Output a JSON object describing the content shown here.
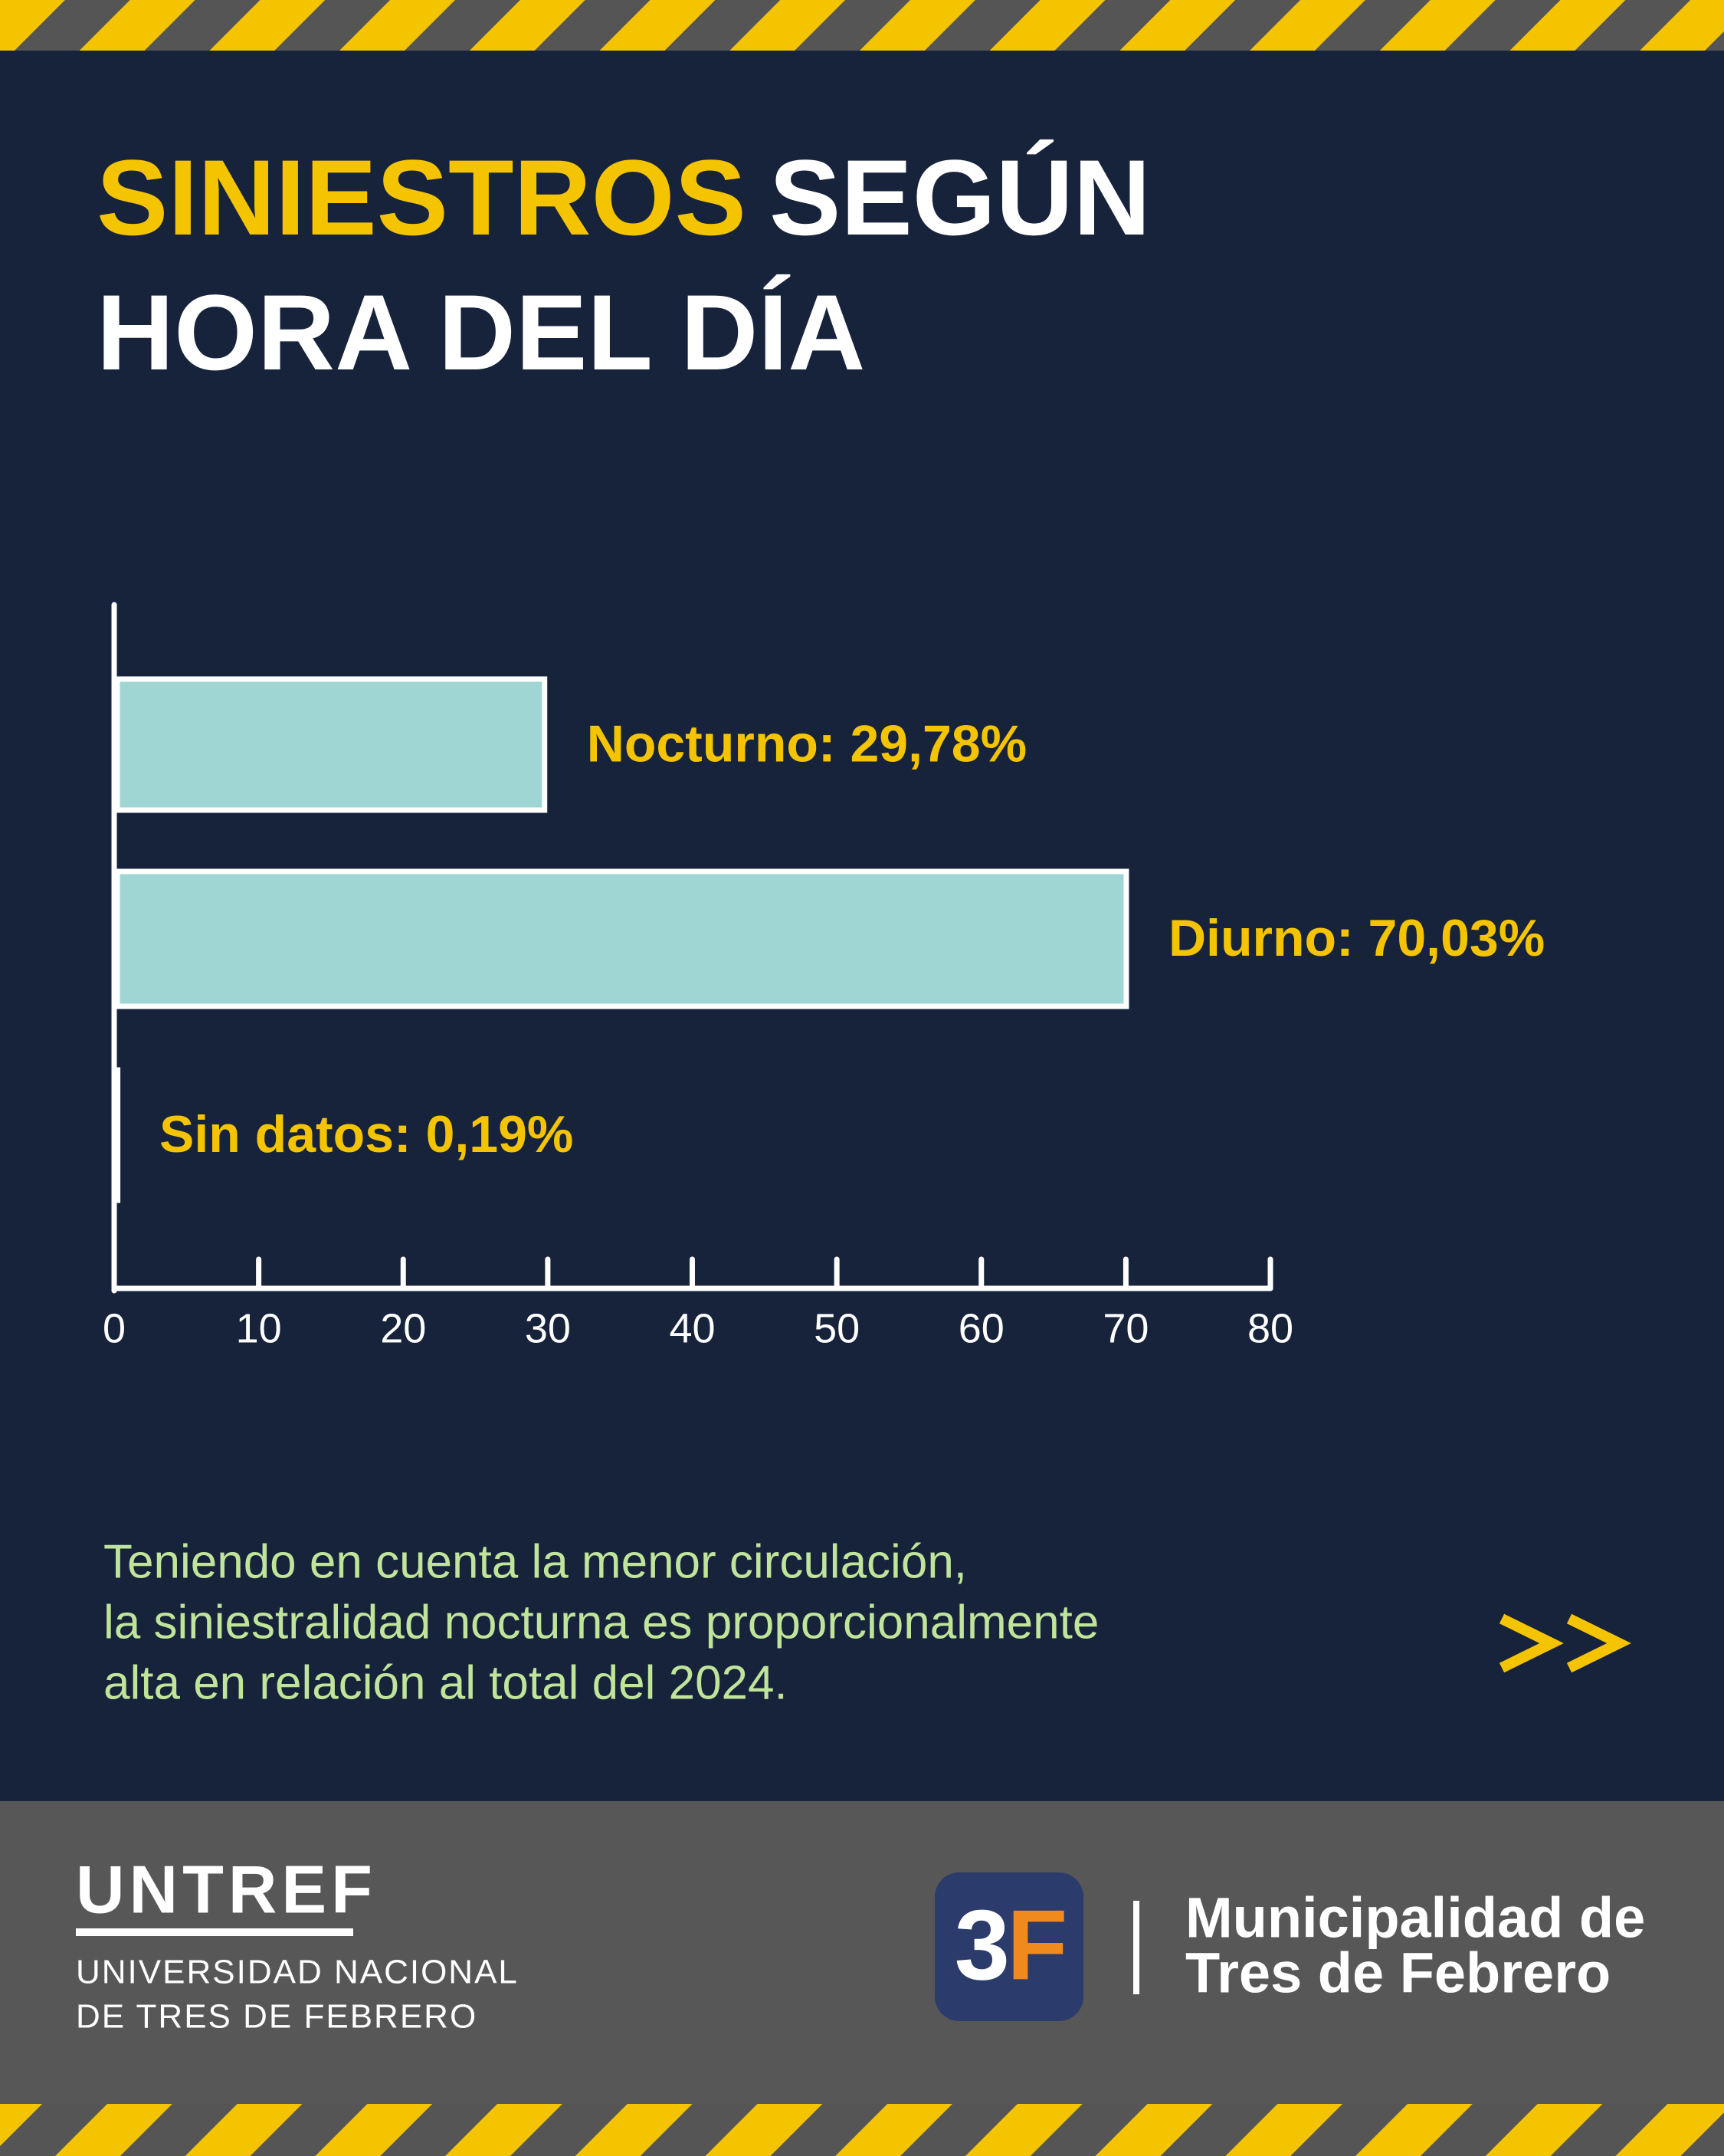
{
  "chart_data": {
    "type": "hbar",
    "title_parts": [
      "SINIESTROS",
      "SEGÚN",
      "HORA DEL DÍA"
    ],
    "values": [
      29.78,
      70.03,
      0.19
    ],
    "value_labels": [
      "Nocturno: 29,78%",
      "Diurno: 70,03%",
      "Sin datos: 0,19%"
    ],
    "colors": [
      "#9fd6d4",
      "#9fd6d4",
      "#c8ea9c"
    ],
    "xlim": [
      0,
      80
    ],
    "xticks": [
      0,
      10,
      20,
      30,
      40,
      50,
      60,
      70,
      80
    ],
    "note": [
      "Teniendo en cuenta la menor circulación,",
      "la siniestralidad nocturna es proporcionalmente",
      "alta en relación al total del 2024."
    ]
  },
  "footer": {
    "untref": "UNTREF",
    "untref_sub": [
      "UNIVERSIDAD NACIONAL",
      "DE TRES DE FEBRERO"
    ],
    "logo": [
      "3",
      "F"
    ],
    "municipio": [
      "Municipalidad de",
      "Tres de Febrero"
    ]
  }
}
